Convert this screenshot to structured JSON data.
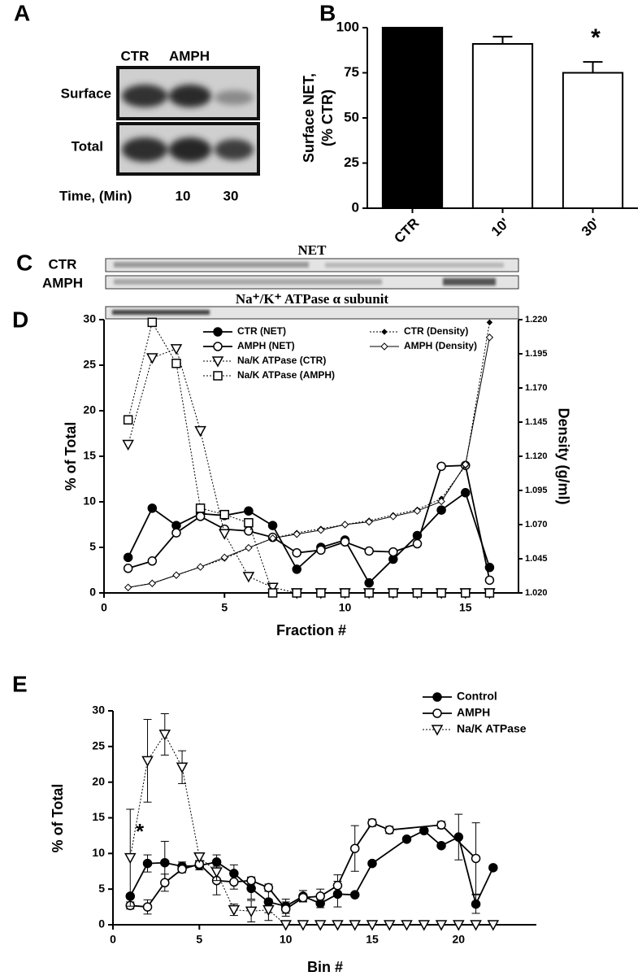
{
  "panel_a": {
    "panel_label": "A",
    "lanes": [
      "CTR",
      "AMPH"
    ],
    "rows": [
      "Surface",
      "Total"
    ],
    "time_label": "Time, (Min)",
    "times": [
      10,
      30
    ]
  },
  "panel_c": {
    "panel_label": "C",
    "blot_title": "NET",
    "conditions": [
      "CTR",
      "AMPH"
    ],
    "marker_title": "Na⁺/K⁺ ATPase α subunit"
  },
  "chart_data": [
    {
      "type": "bar",
      "panel_label": "B",
      "categories": [
        "CTR",
        "10'",
        "30'"
      ],
      "values": [
        100,
        91,
        75
      ],
      "errors": [
        0,
        4,
        6
      ],
      "colors": [
        "#000000",
        "#ffffff",
        "#ffffff"
      ],
      "ylabel": [
        "Surface NET,",
        "(% CTR)"
      ],
      "ylim": [
        0,
        100
      ],
      "yticks": [
        0,
        25,
        50,
        75,
        100
      ],
      "annotation": "*"
    },
    {
      "type": "line",
      "panel_label": "D",
      "xlabel": "Fraction #",
      "ylabel": "% of Total",
      "y2label": "Density (g/ml)",
      "x": [
        1,
        2,
        3,
        4,
        5,
        6,
        7,
        8,
        9,
        10,
        11,
        12,
        13,
        14,
        15,
        16
      ],
      "xlim": [
        0,
        17.2
      ],
      "xticks": [
        0,
        5,
        10,
        15
      ],
      "ylim": [
        0,
        30
      ],
      "yticks": [
        0,
        5,
        10,
        15,
        20,
        25,
        30
      ],
      "y2lim": [
        1.02,
        1.22
      ],
      "y2ticks": [
        {
          "value": 1.02,
          "label": "1.020"
        },
        {
          "value": 1.045,
          "label": "1.045"
        },
        {
          "value": 1.07,
          "label": "1.070"
        },
        {
          "value": 1.095,
          "label": "1.095"
        },
        {
          "value": 1.12,
          "label": "1.120"
        },
        {
          "value": 1.145,
          "label": "1.145"
        },
        {
          "value": 1.17,
          "label": "1.170"
        },
        {
          "value": 1.195,
          "label": "1.195"
        },
        {
          "value": 1.22,
          "label": "1.220"
        }
      ],
      "series": [
        {
          "name": "CTR (NET)",
          "color": "#000000",
          "marker": "circle-filled",
          "line": "solid",
          "values": [
            3.9,
            9.3,
            7.4,
            8.7,
            8.5,
            9.0,
            7.4,
            2.6,
            5.0,
            5.8,
            1.1,
            3.7,
            6.3,
            9.1,
            11.0,
            2.8
          ]
        },
        {
          "name": "AMPH (NET)",
          "color": "#000000",
          "marker": "circle-open",
          "line": "solid",
          "values": [
            2.7,
            3.5,
            6.6,
            8.4,
            7.0,
            6.8,
            6.1,
            4.4,
            4.7,
            5.6,
            4.6,
            4.5,
            5.4,
            13.9,
            14.0,
            1.4
          ]
        },
        {
          "name": "Na/K ATPase (CTR)",
          "color": "#000000",
          "marker": "triangle-open",
          "line": "dotted",
          "values": [
            16.3,
            25.8,
            26.8,
            17.8,
            6.5,
            1.8,
            0.6,
            0,
            0,
            0,
            0,
            0,
            0,
            0,
            0,
            0
          ]
        },
        {
          "name": "Na/K ATPase (AMPH)",
          "color": "#000000",
          "marker": "square-open",
          "line": "dotted",
          "values": [
            19.0,
            29.7,
            25.2,
            9.3,
            8.6,
            7.7,
            0,
            0,
            0,
            0,
            0,
            0,
            0,
            0,
            0,
            0
          ]
        },
        {
          "name": "CTR (Density)",
          "color": "#000000",
          "marker": "diamond-filled",
          "line": "dotted",
          "axis": "y2",
          "values": [
            1.024,
            1.027,
            1.033,
            1.039,
            1.045,
            1.053,
            1.06,
            1.064,
            1.067,
            1.07,
            1.073,
            1.077,
            1.081,
            1.089,
            1.113,
            1.218
          ]
        },
        {
          "name": "AMPH (Density)",
          "color": "#000000",
          "marker": "diamond-open",
          "line": "thin",
          "axis": "y2",
          "values": [
            1.024,
            1.027,
            1.033,
            1.039,
            1.046,
            1.053,
            1.06,
            1.063,
            1.066,
            1.07,
            1.072,
            1.076,
            1.08,
            1.087,
            1.114,
            1.207
          ]
        }
      ]
    },
    {
      "type": "line",
      "panel_label": "E",
      "xlabel": "Bin #",
      "ylabel": "% of Total",
      "annotation": "*",
      "xlim": [
        0,
        24.5
      ],
      "xticks": [
        0,
        5,
        10,
        15,
        20
      ],
      "ylim": [
        0,
        30
      ],
      "yticks": [
        0,
        5,
        10,
        15,
        20,
        25,
        30
      ],
      "series": [
        {
          "name": "Control",
          "color": "#000000",
          "marker": "circle-filled",
          "line": "solid",
          "x": [
            1,
            2,
            3,
            4,
            5,
            6,
            7,
            8,
            9,
            10,
            11,
            12,
            13,
            14,
            15,
            17,
            18,
            19,
            20,
            21,
            22
          ],
          "values": [
            4.0,
            8.6,
            8.7,
            8.2,
            8.3,
            8.8,
            7.2,
            5.1,
            3.2,
            2.6,
            4.0,
            3.0,
            4.3,
            4.2,
            8.6,
            12.0,
            13.2,
            11.1,
            12.3,
            2.9,
            8.0
          ],
          "errors": [
            0.3,
            1.2,
            3.0,
            0.6,
            0.6,
            1.0,
            1.2,
            1.5,
            1.5,
            1.0,
            0.8,
            0.6,
            1.8,
            0.3,
            0.3,
            0.3,
            0.3,
            0.3,
            3.2,
            1.3,
            0.3
          ]
        },
        {
          "name": "AMPH",
          "color": "#000000",
          "marker": "circle-open",
          "line": "solid",
          "x": [
            1,
            2,
            3,
            4,
            5,
            6,
            7,
            8,
            9,
            10,
            11,
            12,
            13,
            14,
            15,
            16,
            19,
            21
          ],
          "values": [
            2.7,
            2.5,
            5.9,
            7.8,
            8.5,
            6.2,
            6.0,
            6.2,
            5.2,
            2.2,
            3.8,
            4.0,
            5.5,
            10.7,
            14.3,
            13.3,
            14.0,
            9.3
          ],
          "errors": [
            0.5,
            1.0,
            1.2,
            0.5,
            0.5,
            2.0,
            1.0,
            0.5,
            0.5,
            1.0,
            0.5,
            1.0,
            1.5,
            3.2,
            0.5,
            0.5,
            0.5,
            5.0
          ]
        },
        {
          "name": "Na/K ATPase",
          "color": "#000000",
          "marker": "triangle-open",
          "line": "dotted",
          "x": [
            1,
            2,
            3,
            4,
            5,
            6,
            7,
            8,
            9,
            10,
            11,
            12,
            13,
            14,
            15,
            16,
            17,
            18,
            19,
            20,
            21,
            22
          ],
          "values": [
            9.4,
            23.0,
            26.7,
            22.1,
            9.5,
            7.4,
            2.1,
            1.9,
            2.1,
            0,
            0,
            0,
            0,
            0,
            0,
            0,
            0,
            0,
            0,
            0,
            0,
            0
          ],
          "errors": [
            6.8,
            5.8,
            2.9,
            2.3,
            0.5,
            1.2,
            0.8,
            1.5,
            1.5,
            0,
            0,
            0,
            0,
            0,
            0,
            0,
            0,
            0,
            0,
            0,
            0,
            0
          ]
        }
      ]
    }
  ]
}
